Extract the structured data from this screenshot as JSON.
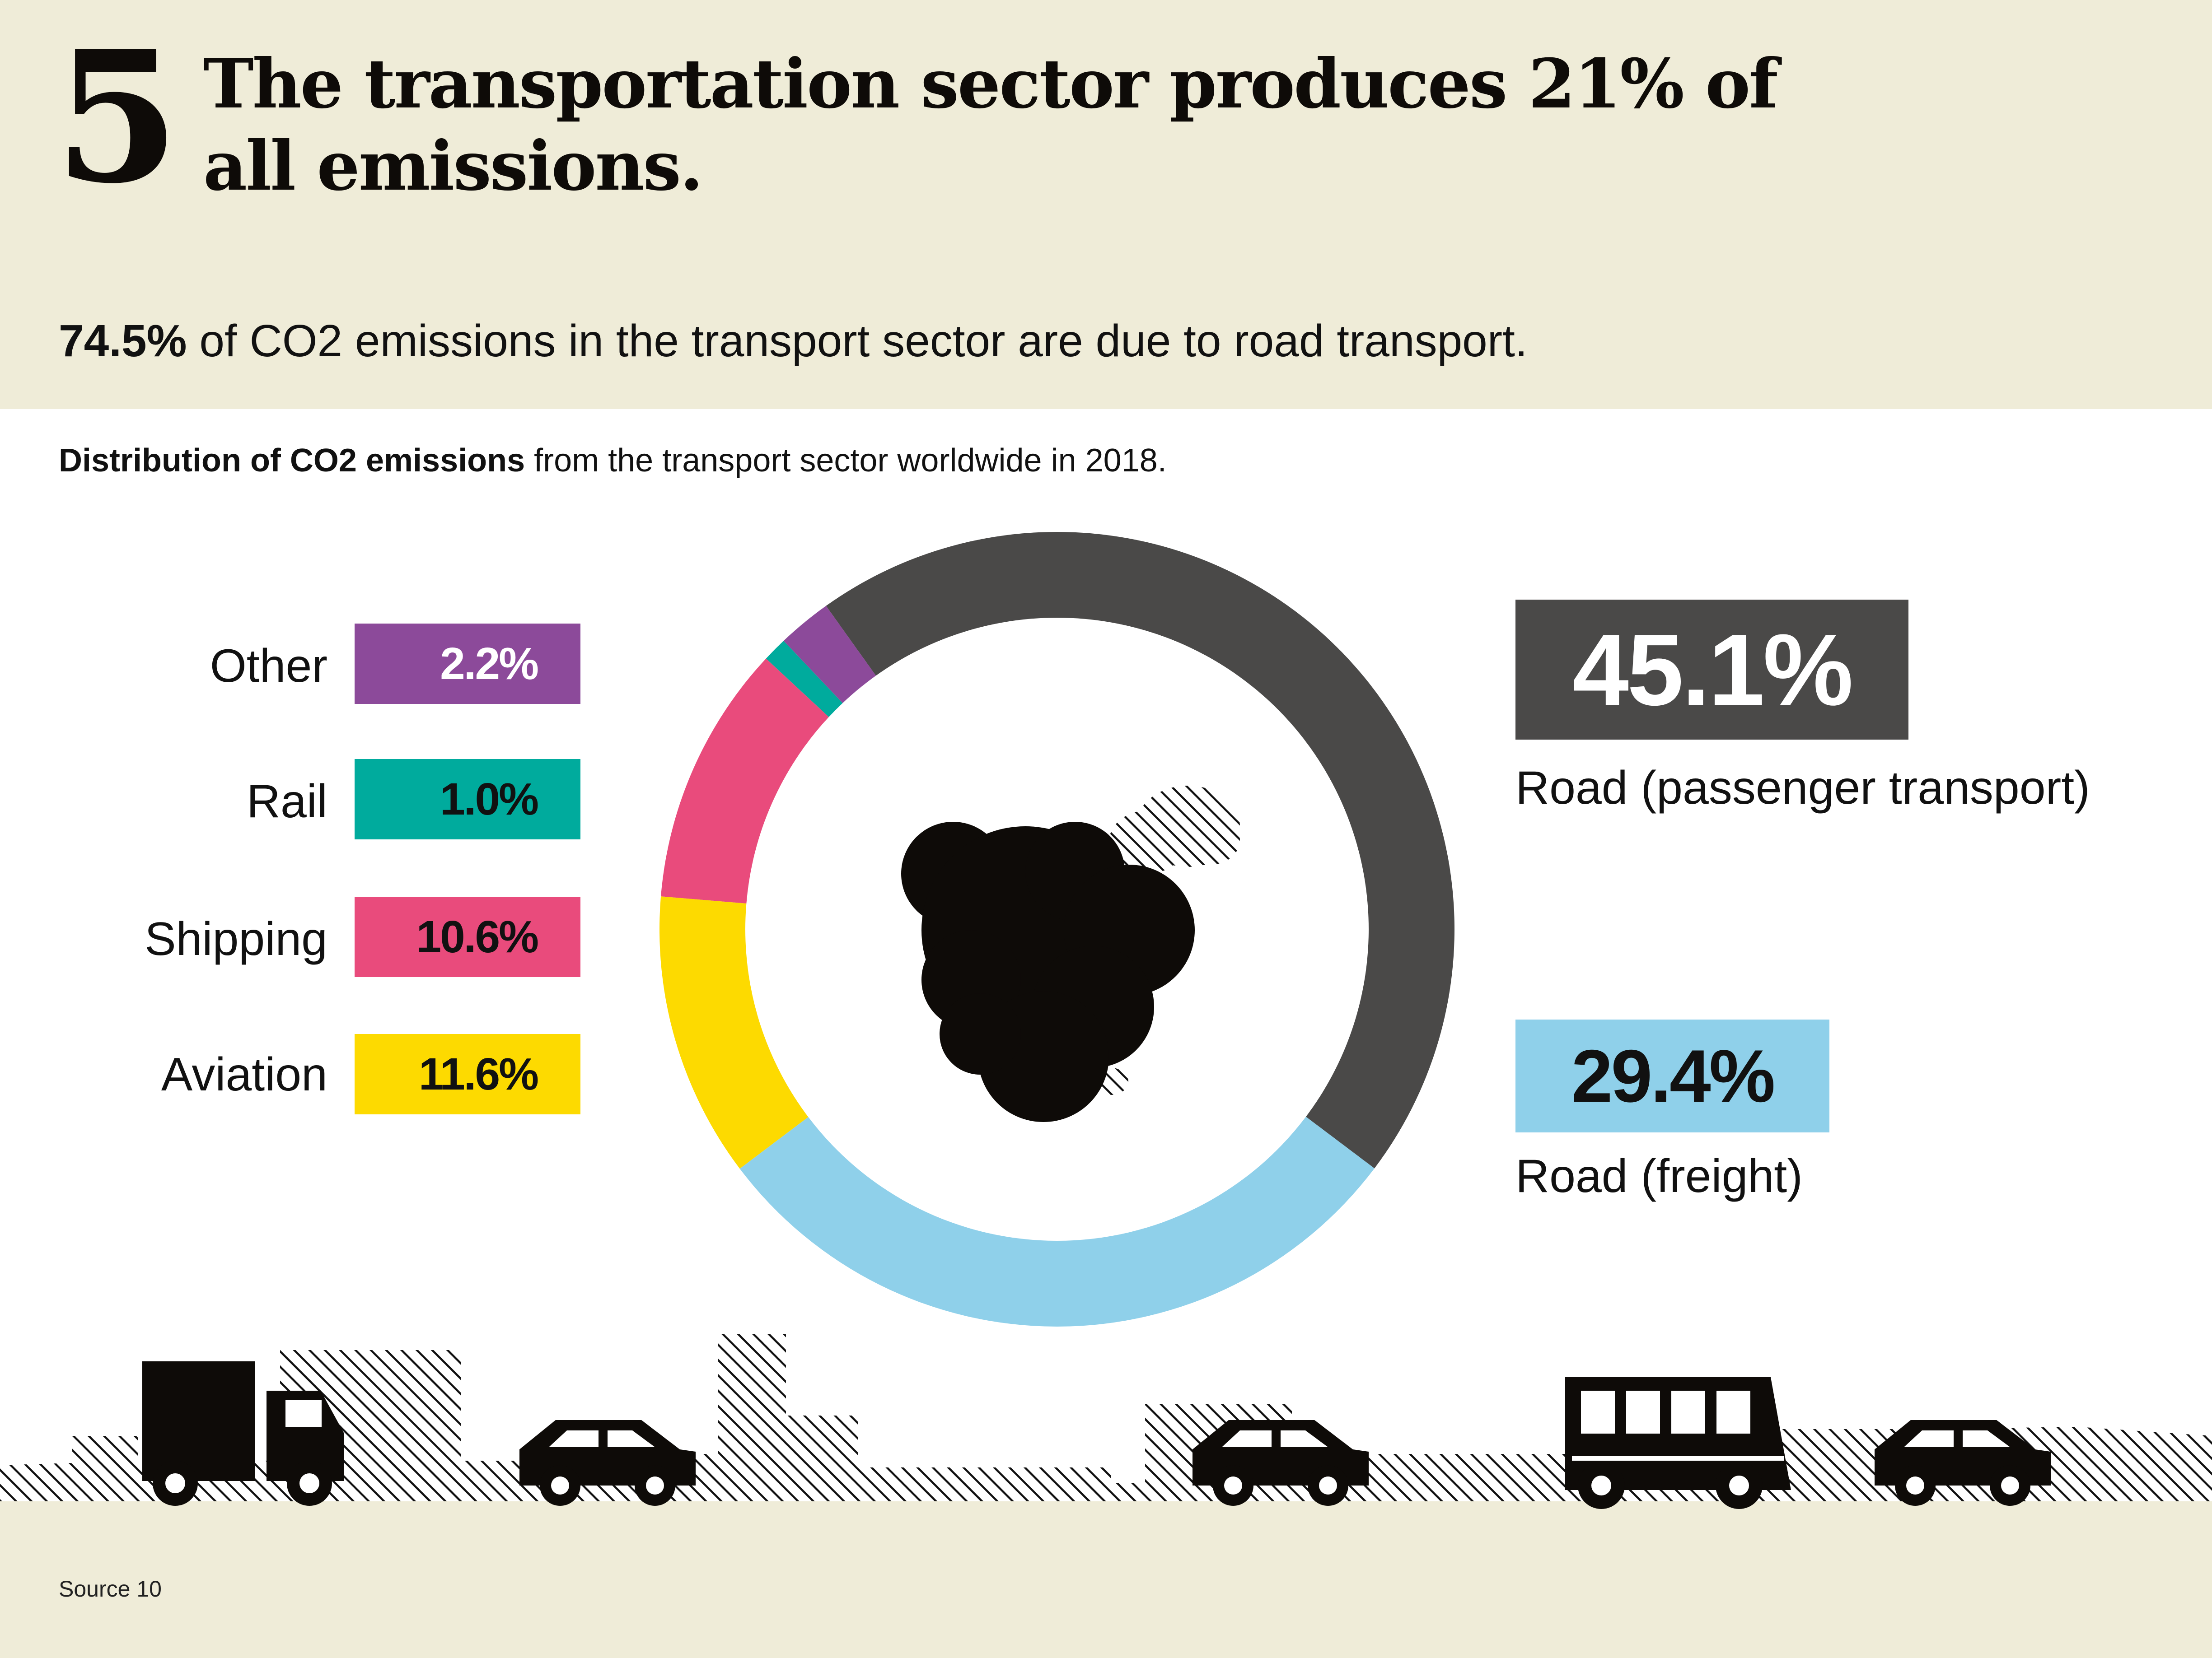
{
  "header": {
    "number": "5",
    "title": "The transportation sector produces 21% of all emissions.",
    "subtitle_bold": "74.5%",
    "subtitle_rest": " of CO2 emissions in the transport sector are due to road transport."
  },
  "caption": {
    "bold": "Distribution of CO2 emissions",
    "rest": " from the transport sector worldwide in 2018."
  },
  "source": "Source 10",
  "chart_data": {
    "type": "pie",
    "donut": true,
    "title": "",
    "categories": [
      "Road (passenger transport)",
      "Road (freight)",
      "Aviation",
      "Shipping",
      "Rail",
      "Other"
    ],
    "values": [
      45.1,
      29.4,
      11.6,
      10.6,
      1.0,
      2.2
    ],
    "value_labels": [
      "45.1%",
      "29.4%",
      "11.6%",
      "10.6%",
      "1.0%",
      "2.2%"
    ],
    "legend_names": [
      "Road (passenger transport)",
      "Road (freight)",
      "Aviation",
      "Shipping",
      "Rail",
      "Other"
    ],
    "colors": [
      "#4a4948",
      "#8fd0ea",
      "#fdda00",
      "#e94b7c",
      "#00ab9d",
      "#8c4a9a"
    ],
    "label_text_colors": [
      "#ffffff",
      "#111111",
      "#111111",
      "#111111",
      "#111111",
      "#ffffff"
    ]
  },
  "icons": [
    "co2-cloud-icon",
    "truck-icon",
    "car-icon",
    "bus-icon"
  ]
}
